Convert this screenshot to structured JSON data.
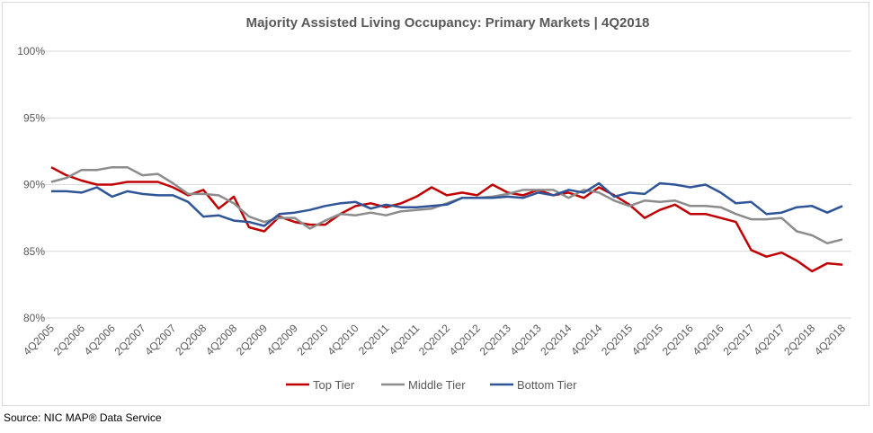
{
  "chart_data": {
    "type": "line",
    "title": "Majority Assisted Living Occupancy: Primary Markets  | 4Q2018",
    "source": "Source: NIC MAP® Data Service",
    "categories": [
      "4Q2005",
      null,
      "2Q2006",
      null,
      "4Q2006",
      null,
      "2Q2007",
      null,
      "4Q2007",
      null,
      "2Q2008",
      null,
      "4Q2008",
      null,
      "2Q2009",
      null,
      "4Q2009",
      null,
      "2Q2010",
      null,
      "4Q2010",
      null,
      "2Q2011",
      null,
      "4Q2011",
      null,
      "2Q2012",
      null,
      "4Q2012",
      null,
      "2Q2013",
      null,
      "4Q2013",
      null,
      "2Q2014",
      null,
      "4Q2014",
      null,
      "2Q2015",
      null,
      "4Q2015",
      null,
      "2Q2016",
      null,
      "4Q2016",
      null,
      "2Q2017",
      null,
      "4Q2017",
      null,
      "2Q2018",
      null,
      "4Q2018"
    ],
    "series": [
      {
        "name": "Top Tier",
        "color": "#c00000",
        "values": [
          91.3,
          90.7,
          90.3,
          90.0,
          90.0,
          90.2,
          90.2,
          90.2,
          89.8,
          89.2,
          89.6,
          88.2,
          89.1,
          86.8,
          86.5,
          87.6,
          87.2,
          87.0,
          87.0,
          87.8,
          88.4,
          88.6,
          88.3,
          88.6,
          89.1,
          89.8,
          89.2,
          89.4,
          89.2,
          90.0,
          89.4,
          89.2,
          89.6,
          89.2,
          89.4,
          89.0,
          89.8,
          89.2,
          88.5,
          87.5,
          88.1,
          88.5,
          87.8,
          87.8,
          87.5,
          87.2,
          85.1,
          84.6,
          84.9,
          84.3,
          83.5,
          84.1,
          84.0
        ]
      },
      {
        "name": "Middle Tier",
        "color": "#8c8c8c",
        "values": [
          90.2,
          90.5,
          91.1,
          91.1,
          91.3,
          91.3,
          90.7,
          90.8,
          90.1,
          89.3,
          89.3,
          89.2,
          88.6,
          87.6,
          87.2,
          87.5,
          87.5,
          86.7,
          87.3,
          87.8,
          87.7,
          87.9,
          87.7,
          88.0,
          88.1,
          88.2,
          88.6,
          89.0,
          89.0,
          89.1,
          89.3,
          89.6,
          89.6,
          89.6,
          89.0,
          89.6,
          89.4,
          88.8,
          88.4,
          88.8,
          88.7,
          88.8,
          88.4,
          88.4,
          88.3,
          87.8,
          87.4,
          87.4,
          87.5,
          86.5,
          86.2,
          85.6,
          85.9
        ]
      },
      {
        "name": "Bottom Tier",
        "color": "#2f5597",
        "values": [
          89.5,
          89.5,
          89.4,
          89.8,
          89.1,
          89.5,
          89.3,
          89.2,
          89.2,
          88.7,
          87.6,
          87.7,
          87.3,
          87.2,
          86.9,
          87.8,
          87.9,
          88.1,
          88.4,
          88.6,
          88.7,
          88.2,
          88.5,
          88.3,
          88.3,
          88.4,
          88.5,
          89.0,
          89.0,
          89.0,
          89.1,
          89.0,
          89.4,
          89.2,
          89.6,
          89.4,
          90.1,
          89.1,
          89.4,
          89.3,
          90.1,
          90.0,
          89.8,
          90.0,
          89.4,
          88.6,
          88.7,
          87.8,
          87.9,
          88.3,
          88.4,
          87.9,
          88.4
        ]
      }
    ],
    "ylim": [
      80,
      100
    ],
    "yticks": [
      {
        "value": 80,
        "label": "80%"
      },
      {
        "value": 85,
        "label": "85%"
      },
      {
        "value": 90,
        "label": "90%"
      },
      {
        "value": 95,
        "label": "95%"
      },
      {
        "value": 100,
        "label": "100%"
      }
    ],
    "grid": true,
    "legend": "bottom"
  }
}
